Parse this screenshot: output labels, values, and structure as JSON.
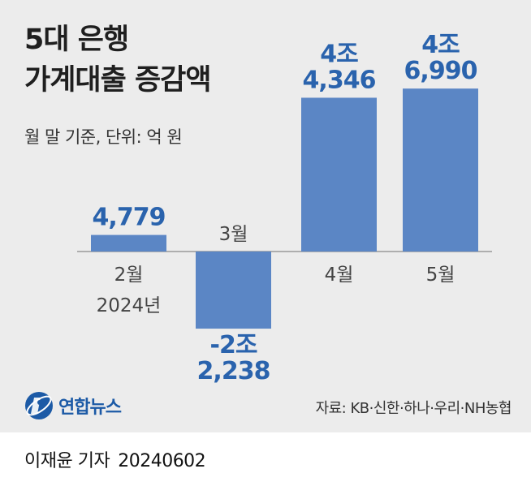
{
  "title_line1": "5대 은행",
  "title_line2": "가계대출 증감액",
  "subtitle": "월 말 기준, 단위: 억 원",
  "source": "자료: KB·신한·하나·우리·NH농협",
  "logo_text": "연합뉴스",
  "credit_name": "이재윤 기자",
  "credit_date": "20240602",
  "colors": {
    "bar": "#5b86c5",
    "value_label": "#2a63ad",
    "panel": "#ececec"
  },
  "chart_data": {
    "type": "bar",
    "categories": [
      "2월",
      "3월",
      "4월",
      "5월"
    ],
    "year_label": "2024년",
    "values": [
      4779,
      -22238,
      44346,
      46990
    ],
    "value_labels": [
      [
        "4,779"
      ],
      [
        "-2조",
        "2,238"
      ],
      [
        "4조",
        "4,346"
      ],
      [
        "4조",
        "6,990"
      ]
    ],
    "title": "5대 은행 가계대출 증감액",
    "unit": "억 원",
    "ylim": [
      -50000,
      50000
    ]
  }
}
